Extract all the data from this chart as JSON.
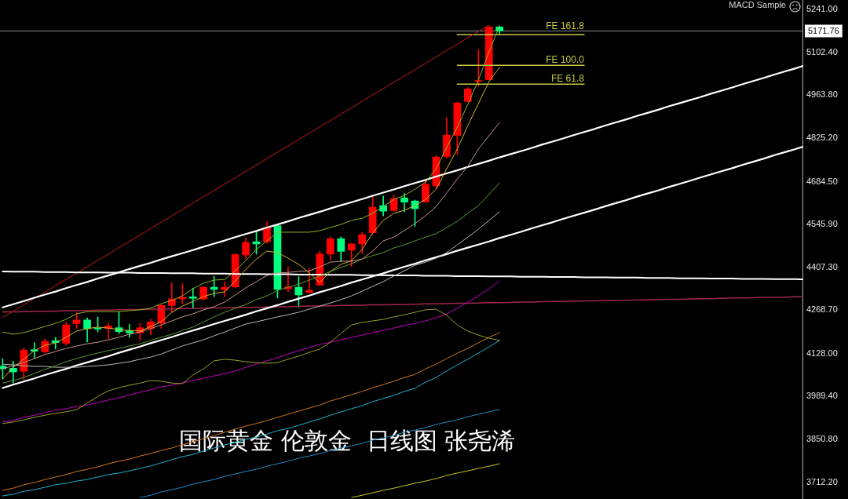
{
  "chart_data": {
    "type": "candlestick",
    "categories": [
      null,
      null,
      null,
      null,
      null,
      null,
      null,
      null,
      null,
      null,
      null,
      null,
      null,
      null,
      null,
      null,
      null,
      null,
      null,
      null,
      null,
      null,
      null,
      null,
      null,
      null,
      null,
      null,
      null,
      null,
      null,
      null,
      null,
      null,
      null,
      null,
      null,
      null,
      null,
      null,
      null,
      null,
      null,
      null,
      null,
      null,
      null,
      null,
      null,
      null,
      null,
      null,
      null,
      null,
      null,
      null,
      null,
      null,
      null,
      null,
      null,
      null,
      null,
      null,
      null,
      null,
      null,
      null,
      null,
      null,
      null,
      null,
      null,
      null,
      null,
      null,
      null
    ],
    "ohlc": [
      [
        4088,
        4112,
        4046,
        4079
      ],
      [
        4081,
        4104,
        4033,
        4069
      ],
      [
        4071,
        4147,
        4045,
        4140
      ],
      [
        4141,
        4164,
        4113,
        4136
      ],
      [
        4134,
        4176,
        4130,
        4168
      ],
      [
        4170,
        4181,
        4143,
        4164
      ],
      [
        4162,
        4231,
        4155,
        4221
      ],
      [
        4225,
        4261,
        4210,
        4237
      ],
      [
        4237,
        4244,
        4166,
        4209
      ],
      [
        4211,
        4247,
        4198,
        4208
      ],
      [
        4209,
        4227,
        4176,
        4218
      ],
      [
        4212,
        4264,
        4193,
        4199
      ],
      [
        4202,
        4223,
        4181,
        4195
      ],
      [
        4195,
        4226,
        4172,
        4212
      ],
      [
        4209,
        4240,
        4189,
        4231
      ],
      [
        4227,
        4287,
        4210,
        4284
      ],
      [
        4284,
        4358,
        4261,
        4305
      ],
      [
        4305,
        4354,
        4289,
        4310
      ],
      [
        4312,
        4340,
        4274,
        4307
      ],
      [
        4305,
        4346,
        4301,
        4343
      ],
      [
        4343,
        4379,
        4312,
        4336
      ],
      [
        4335,
        4360,
        4312,
        4343
      ],
      [
        4344,
        4451,
        4341,
        4449
      ],
      [
        4447,
        4502,
        4434,
        4488
      ],
      [
        4490,
        4523,
        4450,
        4483
      ],
      [
        4490,
        4555,
        4485,
        4536
      ],
      [
        4542,
        4544,
        4308,
        4336
      ],
      [
        4338,
        4409,
        4329,
        4344
      ],
      [
        4343,
        4377,
        4278,
        4318
      ],
      [
        4326,
        4405,
        4325,
        4333
      ],
      [
        4350,
        4460,
        4348,
        4451
      ],
      [
        4450,
        4506,
        4430,
        4500
      ],
      [
        4500,
        4506,
        4426,
        4459
      ],
      [
        4463,
        4485,
        4409,
        4483
      ],
      [
        4483,
        4521,
        4453,
        4513
      ],
      [
        4519,
        4636,
        4515,
        4602
      ],
      [
        4607,
        4638,
        4574,
        4589
      ],
      [
        4591,
        4642,
        4589,
        4629
      ],
      [
        4632,
        4646,
        4587,
        4618
      ],
      [
        4622,
        4625,
        4540,
        4597
      ],
      [
        4619,
        4688,
        4616,
        4676
      ],
      [
        4671,
        4769,
        4663,
        4764
      ],
      [
        4766,
        4891,
        4760,
        4835
      ],
      [
        4834,
        4942,
        4773,
        4939
      ],
      [
        4944,
        4989,
        4942,
        4984
      ],
      [
        5009,
        5111,
        4993,
        5012
      ],
      [
        5014,
        5187,
        5014,
        5185
      ],
      [
        5185,
        5188,
        5162,
        5171.76
      ],
      null,
      null,
      null,
      null,
      null,
      null,
      null,
      null,
      null,
      null,
      null,
      null,
      null,
      null,
      null,
      null,
      null,
      null,
      null,
      null,
      null,
      null,
      null,
      null,
      null,
      null,
      null,
      null,
      null
    ],
    "colors": [
      "#00ff7f",
      "#00ff7f",
      "#ff0000",
      "#00ff7f",
      "#ff0000",
      "#00ff7f",
      "#ff0000",
      "#ff0000",
      "#00ff7f",
      "#00ff7f",
      "#ff0000",
      "#00ff7f",
      "#00ff7f",
      "#ff0000",
      "#ff0000",
      "#ff0000",
      "#ff0000",
      "#ff0000",
      "#00ff7f",
      "#ff0000",
      "#00ff7f",
      "#ff0000",
      "#ff0000",
      "#ff0000",
      "#00ff7f",
      "#ff0000",
      "#00ff7f",
      "#ff0000",
      "#00ff7f",
      "#ff0000",
      "#ff0000",
      "#ff0000",
      "#00ff7f",
      "#ff0000",
      "#ff0000",
      "#ff0000",
      "#00ff7f",
      "#ff0000",
      "#00ff7f",
      "#00ff7f",
      "#ff0000",
      "#ff0000",
      "#ff0000",
      "#ff0000",
      "#ff0000",
      "#ff0000",
      "#ff0000",
      "#00ff7f",
      null,
      null,
      null,
      null,
      null,
      null,
      null,
      null,
      null,
      null,
      null,
      null,
      null,
      null,
      null,
      null,
      null,
      null,
      null,
      null,
      null,
      null,
      null,
      null,
      null,
      null,
      null,
      null,
      null
    ],
    "series": [
      {
        "type": "line",
        "color": "#8cb423",
        "values": [
          4198,
          4191,
          4196,
          4206,
          4216,
          4226,
          4239,
          4257,
          4264,
          4264,
          4264,
          4264,
          4267,
          4270,
          4275,
          4290,
          4300,
          4315,
          4338,
          4356,
          4366,
          4368,
          4396,
          4429,
          4465,
          4493,
          4521,
          4521,
          4521,
          4521,
          4526,
          4536,
          4546,
          4559,
          4566,
          4582,
          4604,
          4627,
          4640,
          4660,
          4683,
          4726,
          4795,
          4861,
          4934,
          5013,
          5104,
          5188,
          null,
          null,
          null,
          null,
          null,
          null,
          null,
          null,
          null,
          null,
          null,
          null,
          null,
          null,
          null,
          null,
          null,
          null,
          null,
          null,
          null,
          null,
          null,
          null,
          null,
          null,
          null,
          null,
          null
        ]
      },
      {
        "type": "line",
        "color": "#d2b428",
        "values": [
          4046,
          4084,
          4110,
          4138,
          4155,
          4163,
          4181,
          4201,
          4209,
          4214,
          4211,
          4206,
          4203,
          4201,
          4216,
          4231,
          4262,
          4282,
          4297,
          4313,
          4323,
          4328,
          4363,
          4401,
          4434,
          4460,
          4455,
          4437,
          4417,
          4389,
          4358,
          4394,
          4417,
          4429,
          4465,
          4518,
          4559,
          4582,
          4592,
          4607,
          4627,
          4660,
          4726,
          4790,
          4866,
          4937,
          5008,
          5054,
          null,
          null,
          null,
          null,
          null,
          null,
          null,
          null,
          null,
          null,
          null,
          null,
          null,
          null,
          null,
          null,
          null,
          null,
          null,
          null,
          null,
          null,
          null,
          null,
          null,
          null,
          null,
          null,
          null
        ]
      },
      {
        "type": "line",
        "color": "#c8968c",
        "values": [
          4079,
          4089,
          4099,
          4112,
          4125,
          4135,
          4145,
          4153,
          4160,
          4165,
          4173,
          4181,
          4191,
          4198,
          4209,
          4221,
          4234,
          4247,
          4257,
          4270,
          4280,
          4295,
          4318,
          4341,
          4361,
          4381,
          4389,
          4391,
          4394,
          4396,
          4409,
          4424,
          4427,
          4427,
          4434,
          4460,
          4493,
          4505,
          4526,
          4549,
          4574,
          4604,
          4648,
          4693,
          4734,
          4790,
          4833,
          4876,
          null,
          null,
          null,
          null,
          null,
          null,
          null,
          null,
          null,
          null,
          null,
          null,
          null,
          null,
          null,
          null,
          null,
          null,
          null,
          null,
          null,
          null,
          null,
          null,
          null,
          null,
          null,
          null,
          null
        ]
      },
      {
        "type": "line",
        "color": "#5a9e2d",
        "values": [
          4033,
          4041,
          4051,
          4064,
          4077,
          4089,
          4102,
          4112,
          4122,
          4130,
          4138,
          4145,
          4153,
          4160,
          4171,
          4181,
          4191,
          4203,
          4214,
          4231,
          4247,
          4262,
          4275,
          4287,
          4303,
          4315,
          4333,
          4343,
          4353,
          4366,
          4379,
          4394,
          4407,
          4419,
          4434,
          4445,
          4455,
          4470,
          4480,
          4493,
          4505,
          4516,
          4536,
          4556,
          4582,
          4607,
          4643,
          4681,
          null,
          null,
          null,
          null,
          null,
          null,
          null,
          null,
          null,
          null,
          null,
          null,
          null,
          null,
          null,
          null,
          null,
          null,
          null,
          null,
          null,
          null,
          null,
          null,
          null,
          null,
          null,
          null,
          null
        ]
      },
      {
        "type": "line",
        "color": "#b9b9b9",
        "values": [
          4094,
          4092,
          4089,
          4087,
          4087,
          4084,
          4084,
          4084,
          4087,
          4089,
          4092,
          4097,
          4102,
          4110,
          4117,
          4127,
          4140,
          4153,
          4163,
          4173,
          4186,
          4198,
          4211,
          4224,
          4231,
          4239,
          4247,
          4254,
          4262,
          4272,
          4282,
          4292,
          4303,
          4315,
          4330,
          4346,
          4361,
          4379,
          4396,
          4414,
          4424,
          4437,
          4455,
          4480,
          4505,
          4531,
          4559,
          4587,
          null,
          null,
          null,
          null,
          null,
          null,
          null,
          null,
          null,
          null,
          null,
          null,
          null,
          null,
          null,
          null,
          null,
          null,
          null,
          null,
          null,
          null,
          null,
          null,
          null,
          null,
          null,
          null,
          null
        ]
      },
      {
        "type": "line",
        "color": "#9aa028",
        "values": [
          3902,
          3907,
          3914,
          3922,
          3929,
          3935,
          3940,
          3947,
          3968,
          3990,
          4008,
          4018,
          4026,
          4033,
          4041,
          4039,
          4033,
          4031,
          4059,
          4079,
          4105,
          4110,
          4107,
          4102,
          4099,
          4097,
          4099,
          4110,
          4120,
          4132,
          4143,
          4165,
          4193,
          4221,
          4229,
          4234,
          4239,
          4247,
          4254,
          4262,
          4270,
          4272,
          4252,
          4221,
          4201,
          4188,
          4178,
          4171,
          null,
          null,
          null,
          null,
          null,
          null,
          null,
          null,
          null,
          null,
          null,
          null,
          null,
          null,
          null,
          null,
          null,
          null,
          null,
          null,
          null,
          null,
          null,
          null,
          null,
          null,
          null,
          null,
          null
        ]
      },
      {
        "type": "line",
        "color": "#c000c0",
        "values": [
          3907,
          3912,
          3922,
          3929,
          3937,
          3945,
          3950,
          3957,
          3962,
          3970,
          3978,
          3985,
          3995,
          4003,
          4011,
          4021,
          4026,
          4033,
          4041,
          4049,
          4056,
          4064,
          4072,
          4084,
          4094,
          4105,
          4115,
          4127,
          4138,
          4148,
          4158,
          4165,
          4173,
          4181,
          4188,
          4196,
          4203,
          4211,
          4219,
          4226,
          4234,
          4244,
          4257,
          4275,
          4295,
          4315,
          4338,
          4363,
          null,
          null,
          null,
          null,
          null,
          null,
          null,
          null,
          null,
          null,
          null,
          null,
          null,
          null,
          null,
          null,
          null,
          null,
          null,
          null,
          null,
          null,
          null,
          null,
          null,
          null,
          null,
          null,
          null
        ]
      },
      {
        "type": "line",
        "color": "#d2781e",
        "values": [
          3686,
          3693,
          3704,
          3711,
          3721,
          3729,
          3737,
          3747,
          3754,
          3762,
          3772,
          3780,
          3787,
          3797,
          3805,
          3815,
          3823,
          3833,
          3843,
          3853,
          3863,
          3874,
          3884,
          3894,
          3902,
          3912,
          3922,
          3932,
          3942,
          3952,
          3962,
          3975,
          3985,
          3995,
          4006,
          4018,
          4028,
          4039,
          4051,
          4061,
          4079,
          4094,
          4112,
          4130,
          4145,
          4163,
          4181,
          4196,
          null,
          null,
          null,
          null,
          null,
          null,
          null,
          null,
          null,
          null,
          null,
          null,
          null,
          null,
          null,
          null,
          null,
          null,
          null,
          null,
          null,
          null,
          null,
          null,
          null,
          null,
          null,
          null,
          null
        ]
      },
      {
        "type": "line",
        "color": "#1eb4d2",
        "values": [
          3668,
          3673,
          3683,
          3688,
          3696,
          3704,
          3709,
          3716,
          3721,
          3729,
          3737,
          3742,
          3749,
          3757,
          3765,
          3775,
          3785,
          3795,
          3802,
          3813,
          3823,
          3833,
          3841,
          3851,
          3858,
          3868,
          3879,
          3886,
          3896,
          3907,
          3917,
          3929,
          3940,
          3950,
          3960,
          3973,
          3983,
          3993,
          4006,
          4016,
          4036,
          4051,
          4072,
          4092,
          4110,
          4130,
          4150,
          4171,
          null,
          null,
          null,
          null,
          null,
          null,
          null,
          null,
          null,
          null,
          null,
          null,
          null,
          null,
          null,
          null,
          null,
          null,
          null,
          null,
          null,
          null,
          null,
          null,
          null,
          null,
          null,
          null,
          null
        ]
      },
      {
        "type": "line",
        "color": "#1e8cc8",
        "values": [
          null,
          null,
          null,
          null,
          null,
          null,
          null,
          null,
          null,
          null,
          null,
          null,
          null,
          3663,
          3670,
          3681,
          3688,
          3696,
          3706,
          3714,
          3721,
          3731,
          3739,
          3747,
          3754,
          3764,
          3772,
          3780,
          3790,
          3797,
          3805,
          3815,
          3823,
          3830,
          3838,
          3848,
          3856,
          3863,
          3874,
          3881,
          3889,
          3899,
          3907,
          3914,
          3924,
          3932,
          3940,
          3947,
          null,
          null,
          null,
          null,
          null,
          null,
          null,
          null,
          null,
          null,
          null,
          null,
          null,
          null,
          null,
          null,
          null,
          null,
          null,
          null,
          null,
          null,
          null,
          null,
          null,
          null,
          null,
          null,
          null
        ]
      },
      {
        "type": "line",
        "color": "#c8c81e",
        "values": [
          null,
          null,
          null,
          null,
          null,
          null,
          null,
          null,
          null,
          null,
          null,
          null,
          null,
          null,
          null,
          null,
          null,
          null,
          null,
          null,
          null,
          null,
          null,
          null,
          null,
          null,
          null,
          null,
          null,
          null,
          null,
          null,
          null,
          3663,
          3670,
          3678,
          3686,
          3693,
          3701,
          3709,
          3716,
          3724,
          3734,
          3742,
          3749,
          3757,
          3764,
          3772,
          null,
          null,
          null,
          null,
          null,
          null,
          null,
          null,
          null,
          null,
          null,
          null,
          null,
          null,
          null,
          null,
          null,
          null,
          null,
          null,
          null,
          null,
          null,
          null,
          null,
          null,
          null,
          null,
          null
        ]
      },
      {
        "type": "line",
        "color": "#ffffff",
        "values": [
          4278,
          4288,
          4298,
          4309,
          4319,
          4329,
          4340,
          4350,
          4360,
          4371,
          4381,
          4391,
          4402,
          4412,
          4422,
          4433,
          4443,
          4453,
          4463,
          4474,
          4484,
          4494,
          4505,
          4515,
          4525,
          4536,
          4546,
          4556,
          4567,
          4577,
          4587,
          4598,
          4608,
          4618,
          4628,
          4639,
          4649,
          4659,
          4670,
          4680,
          4690,
          4701,
          4711,
          4721,
          4732,
          4742,
          4752,
          4763,
          4773,
          4783,
          4793,
          4804,
          4814,
          4824,
          4835,
          4845,
          4855,
          4866,
          4876,
          4886,
          4897,
          4907,
          4917,
          4928,
          4938,
          4948,
          4958,
          4969,
          4979,
          4989,
          5000,
          5010,
          5020,
          5031,
          5041,
          5051,
          5062
        ]
      },
      {
        "type": "line",
        "color": "#ffffff",
        "values": [
          4017,
          4028,
          4038,
          4048,
          4059,
          4069,
          4079,
          4090,
          4100,
          4110,
          4120,
          4131,
          4141,
          4151,
          4162,
          4172,
          4182,
          4193,
          4203,
          4213,
          4224,
          4234,
          4244,
          4254,
          4265,
          4275,
          4285,
          4296,
          4306,
          4316,
          4327,
          4337,
          4347,
          4358,
          4368,
          4378,
          4388,
          4399,
          4409,
          4419,
          4430,
          4440,
          4450,
          4461,
          4471,
          4481,
          4491,
          4502,
          4512,
          4522,
          4533,
          4543,
          4553,
          4564,
          4574,
          4584,
          4594,
          4605,
          4615,
          4625,
          4636,
          4646,
          4656,
          4667,
          4677,
          4687,
          4698,
          4708,
          4718,
          4728,
          4739,
          4749,
          4759,
          4770,
          4780,
          4790,
          4801
        ]
      },
      {
        "type": "line",
        "color": "#ffffff",
        "values": [
          4394,
          4393,
          4393,
          4393,
          4392,
          4392,
          4392,
          4391,
          4391,
          4391,
          4390,
          4390,
          4390,
          4389,
          4389,
          4389,
          4388,
          4388,
          4388,
          4387,
          4387,
          4387,
          4386,
          4386,
          4386,
          4385,
          4385,
          4385,
          4384,
          4384,
          4384,
          4383,
          4383,
          4383,
          4382,
          4382,
          4382,
          4381,
          4381,
          4381,
          4380,
          4380,
          4380,
          4379,
          4379,
          4379,
          4378,
          4378,
          4378,
          4377,
          4377,
          4377,
          4376,
          4376,
          4376,
          4375,
          4375,
          4375,
          4374,
          4374,
          4374,
          4373,
          4373,
          4373,
          4372,
          4372,
          4372,
          4371,
          4371,
          4371,
          4370,
          4370,
          4370,
          4369,
          4369,
          4369,
          4368
        ]
      },
      {
        "type": "line",
        "color": "#a0284b",
        "values": [
          4263,
          4263,
          4264,
          4265,
          4265,
          4266,
          4267,
          4267,
          4268,
          4269,
          4269,
          4270,
          4271,
          4271,
          4272,
          4273,
          4273,
          4274,
          4274,
          4275,
          4276,
          4276,
          4277,
          4278,
          4278,
          4279,
          4280,
          4280,
          4281,
          4282,
          4282,
          4283,
          4284,
          4284,
          4285,
          4286,
          4286,
          4287,
          4287,
          4288,
          4289,
          4289,
          4290,
          4291,
          4291,
          4292,
          4293,
          4293,
          4294,
          4295,
          4295,
          4296,
          4297,
          4297,
          4298,
          4299,
          4299,
          4300,
          4300,
          4301,
          4302,
          4302,
          4303,
          4304,
          4304,
          4305,
          4306,
          4306,
          4307,
          4308,
          4308,
          4309,
          4310,
          4310,
          4311,
          4312,
          4312
        ]
      },
      {
        "type": "line",
        "color": "#c81919",
        "values": [
          4245,
          4265,
          4286,
          4307,
          4327,
          4348,
          4368,
          4389,
          4409,
          4430,
          4450,
          4471,
          4492,
          4512,
          4533,
          4553,
          4574,
          4594,
          4615,
          4636,
          4656,
          4677,
          4697,
          4718,
          4738,
          4759,
          4780,
          4800,
          4821,
          4841,
          4862,
          4882,
          4903,
          4923,
          4944,
          4965,
          4985,
          5006,
          5026,
          5047,
          5067,
          5088,
          5109,
          5129,
          5150,
          5170,
          5191,
          null,
          null,
          null,
          null,
          null,
          null,
          null,
          null,
          null,
          null,
          null,
          null,
          null,
          null,
          null,
          null,
          null,
          null,
          null,
          null,
          null,
          null,
          null,
          null,
          null,
          null,
          null,
          null,
          null,
          null
        ]
      },
      {
        "type": "line",
        "name": "FE 161.8",
        "color": "#c8c846",
        "values": [
          null,
          null,
          null,
          null,
          null,
          null,
          null,
          null,
          null,
          null,
          null,
          null,
          null,
          null,
          null,
          null,
          null,
          null,
          null,
          null,
          null,
          null,
          null,
          null,
          null,
          null,
          null,
          null,
          null,
          null,
          null,
          null,
          null,
          null,
          null,
          null,
          null,
          null,
          null,
          null,
          null,
          null,
          null,
          5160,
          5160,
          5160,
          5160,
          5160,
          5160,
          5160,
          5160,
          5160,
          5160,
          5160,
          5160,
          5160,
          null,
          null,
          null,
          null,
          null,
          null,
          null,
          null,
          null,
          null,
          null,
          null,
          null,
          null,
          null,
          null,
          null,
          null,
          null,
          null,
          null
        ]
      },
      {
        "type": "line",
        "name": "FE 100.0",
        "color": "#c8c846",
        "values": [
          null,
          null,
          null,
          null,
          null,
          null,
          null,
          null,
          null,
          null,
          null,
          null,
          null,
          null,
          null,
          null,
          null,
          null,
          null,
          null,
          null,
          null,
          null,
          null,
          null,
          null,
          null,
          null,
          null,
          null,
          null,
          null,
          null,
          null,
          null,
          null,
          null,
          null,
          null,
          null,
          null,
          null,
          null,
          5061,
          5061,
          5061,
          5061,
          5061,
          5061,
          5061,
          5061,
          5061,
          5061,
          5061,
          5061,
          5061,
          null,
          null,
          null,
          null,
          null,
          null,
          null,
          null,
          null,
          null,
          null,
          null,
          null,
          null,
          null,
          null,
          null,
          null,
          null,
          null,
          null
        ]
      },
      {
        "type": "line",
        "name": "FE 61.8",
        "color": "#c8c846",
        "values": [
          null,
          null,
          null,
          null,
          null,
          null,
          null,
          null,
          null,
          null,
          null,
          null,
          null,
          null,
          null,
          null,
          null,
          null,
          null,
          null,
          null,
          null,
          null,
          null,
          null,
          null,
          null,
          null,
          null,
          null,
          null,
          null,
          null,
          null,
          null,
          null,
          null,
          null,
          null,
          null,
          null,
          null,
          null,
          5000,
          5000,
          5000,
          5000,
          5000,
          5000,
          5000,
          5000,
          5000,
          5000,
          5000,
          5000,
          5000,
          null,
          null,
          null,
          null,
          null,
          null,
          null,
          null,
          null,
          null,
          null,
          null,
          null,
          null,
          null,
          null,
          null,
          null,
          null,
          null,
          null
        ]
      }
    ],
    "ylim": [
      3658,
      5272
    ],
    "yticks": [
      {
        "value": 5241,
        "label": "5241.00"
      },
      {
        "value": 5102.4,
        "label": "5102.40"
      },
      {
        "value": 4963.8,
        "label": "4963.80"
      },
      {
        "value": 4825.2,
        "label": "4825.20"
      },
      {
        "value": 4684.5,
        "label": "4684.50"
      },
      {
        "value": 4545.9,
        "label": "4545.90"
      },
      {
        "value": 4407.3,
        "label": "4407.30"
      },
      {
        "value": 4268.7,
        "label": "4268.70"
      },
      {
        "value": 4128,
        "label": "4128.00"
      },
      {
        "value": 3989.4,
        "label": "3989.40"
      },
      {
        "value": 3850.8,
        "label": "3850.80"
      },
      {
        "value": 3712.2,
        "label": "3712.20"
      }
    ],
    "ref_lines": [
      {
        "axis": "y",
        "value": 5171.76,
        "label": "5171.76",
        "color": "#8c8c8c"
      }
    ],
    "annotations": [
      "MACD Sample",
      "国际黄金 伦敦金  日线图 张尧浠"
    ],
    "tick_labels": "y",
    "grid": false,
    "legend": false,
    "marker": "none",
    "line_style": "solid"
  }
}
